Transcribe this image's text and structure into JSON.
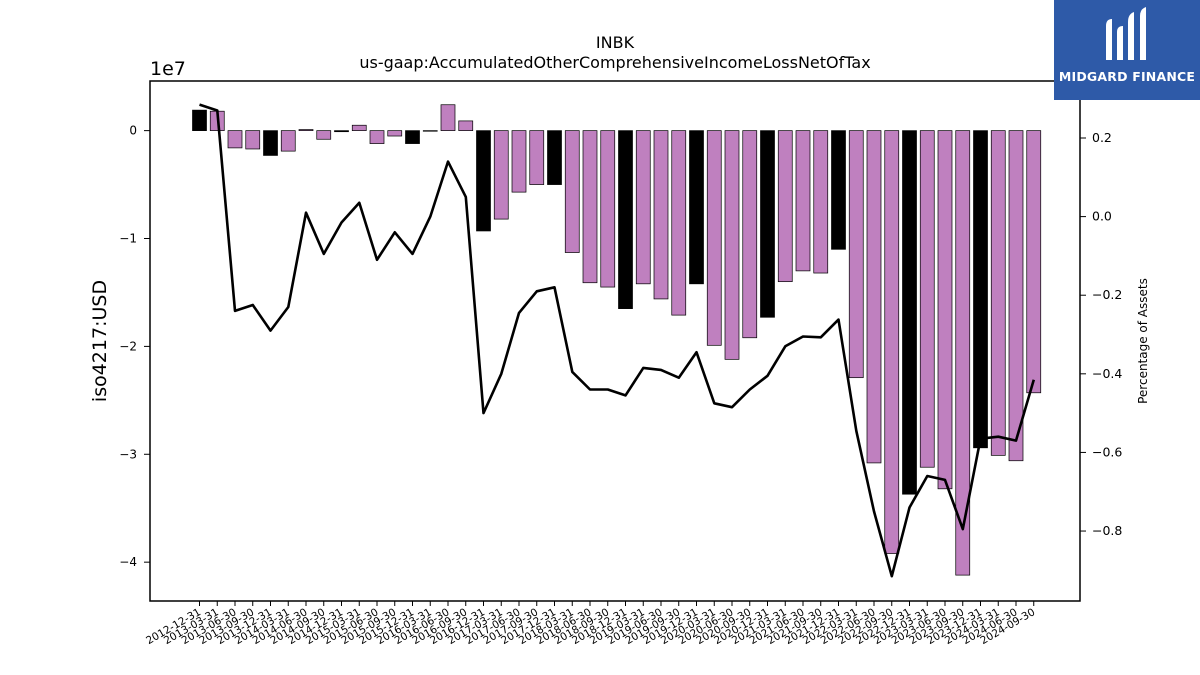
{
  "chart_data": {
    "type": "bar",
    "title": "INBK",
    "subtitle": "us-gaap:AccumulatedOtherComprehensiveIncomeLossNetOfTax",
    "ylabel": "iso4217:USD",
    "y_offset_label": "1e7",
    "y2label": "Percentage of Assets",
    "ylim": [
      -43600000.0,
      4600000.0
    ],
    "y2lim": [
      -0.978,
      0.345
    ],
    "yticks": [
      -4,
      -3,
      -2,
      -1,
      0
    ],
    "y2ticks": [
      "−0.8",
      "−0.6",
      "−0.4",
      "−0.2",
      "0.0",
      "0.2"
    ],
    "colors": {
      "q4_bar": "#000000",
      "other_bar": "#bf80bf",
      "line": "#000000"
    },
    "categories": [
      "2012-12-31",
      "2013-03-31",
      "2013-06-30",
      "2013-09-30",
      "2013-12-31",
      "2014-03-31",
      "2014-06-30",
      "2014-09-30",
      "2014-12-31",
      "2015-03-31",
      "2015-06-30",
      "2015-09-30",
      "2015-12-31",
      "2016-03-31",
      "2016-06-30",
      "2016-09-30",
      "2016-12-31",
      "2017-03-31",
      "2017-06-30",
      "2017-09-30",
      "2017-12-31",
      "2018-03-31",
      "2018-06-30",
      "2018-09-30",
      "2018-12-31",
      "2019-03-31",
      "2019-06-30",
      "2019-09-30",
      "2019-12-31",
      "2020-03-31",
      "2020-06-30",
      "2020-09-30",
      "2020-12-31",
      "2021-03-31",
      "2021-06-30",
      "2021-09-30",
      "2021-12-31",
      "2022-03-31",
      "2022-06-30",
      "2022-09-30",
      "2022-12-31",
      "2023-03-31",
      "2023-06-30",
      "2023-09-30",
      "2023-12-31",
      "2024-03-31",
      "2024-06-30",
      "2024-09-30"
    ],
    "series": [
      {
        "type": "bar",
        "values": [
          1900000,
          1800000,
          -1600000,
          -1700000,
          -2300000,
          -1900000,
          100000,
          -800000,
          -100000,
          500000,
          -1200000,
          -500000,
          -1200000,
          0,
          2400000,
          900000,
          -9300000,
          -8200000,
          -5700000,
          -5000000,
          -5000000,
          -11300000,
          -14100000,
          -14500000,
          -16500000,
          -14200000,
          -15600000,
          -17100000,
          -14200000,
          -19900000,
          -21200000,
          -19200000,
          -17300000,
          -14000000,
          -13000000,
          -13200000,
          -11000000,
          -22900000,
          -30800000,
          -39200000,
          -33700000,
          -31200000,
          -33200000,
          -41200000,
          -29400000,
          -30100000,
          -30600000,
          -24300000
        ]
      },
      {
        "type": "line",
        "axis": "right",
        "values": [
          0.285,
          0.27,
          -0.24,
          -0.225,
          -0.29,
          -0.23,
          0.01,
          -0.095,
          -0.015,
          0.035,
          -0.11,
          -0.04,
          -0.095,
          0.0,
          0.14,
          0.05,
          -0.5,
          -0.4,
          -0.245,
          -0.19,
          -0.18,
          -0.395,
          -0.44,
          -0.44,
          -0.455,
          -0.385,
          -0.39,
          -0.41,
          -0.345,
          -0.475,
          -0.485,
          -0.44,
          -0.405,
          -0.33,
          -0.305,
          -0.307,
          -0.262,
          -0.545,
          -0.75,
          -0.915,
          -0.74,
          -0.66,
          -0.67,
          -0.795,
          -0.565,
          -0.56,
          -0.57,
          -0.415
        ]
      }
    ]
  },
  "logo": {
    "name": "MIDGARD FINANCE",
    "icon": "midgard-logo-icon"
  }
}
